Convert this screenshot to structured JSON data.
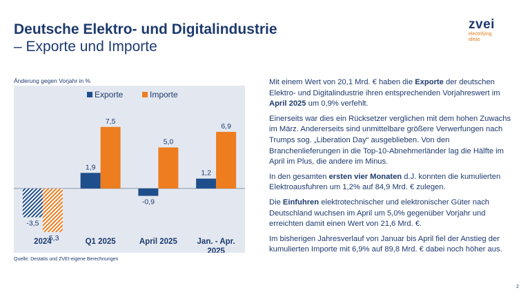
{
  "title_line1": "Deutsche Elektro- und Digitalindustrie",
  "title_line2": "– Exporte und Importe",
  "logo": {
    "mark": "zvei",
    "tagline1": "electrifying",
    "tagline2": "ideas"
  },
  "source": "Quelle: Destatis und ZVEI-eigene Berechnungen",
  "page_number": "2",
  "colors": {
    "exporte": "#1f4e8c",
    "importe": "#ed7d1f",
    "text": "#1d3a6e",
    "chart_bg": "#e3e8f0"
  },
  "chart_data": {
    "type": "bar",
    "ylabel": "Änderung gegen Vorjahr in %",
    "categories": [
      [
        "2024"
      ],
      [
        "Q1 2025"
      ],
      [
        "April 2025"
      ],
      [
        "Jan. - Apr.",
        "2025"
      ]
    ],
    "series": [
      {
        "name": "Exporte",
        "values": [
          -3.5,
          1.9,
          -0.9,
          1.2
        ],
        "labels": [
          "-3,5",
          "1,9",
          "-0,9",
          "1,2"
        ],
        "hatched": [
          true,
          false,
          false,
          false
        ]
      },
      {
        "name": "Importe",
        "values": [
          -5.3,
          7.5,
          5.0,
          6.9
        ],
        "labels": [
          "-5,3",
          "7,5",
          "5,0",
          "6,9"
        ],
        "hatched": [
          true,
          false,
          false,
          false
        ]
      }
    ],
    "ylim": [
      -7.5,
      9.5
    ],
    "grid": false,
    "legend": "top"
  },
  "paragraphs": [
    [
      {
        "t": "Mit einem Wert von 20,1 Mrd. € haben die "
      },
      {
        "t": "Exporte",
        "b": true
      },
      {
        "t": " der deutschen Elektro- und Digitalindustrie ihren entsprechenden Vorjahreswert im "
      },
      {
        "t": "April 2025",
        "b": true
      },
      {
        "t": " um 0,9% verfehlt."
      }
    ],
    [
      {
        "t": "Einerseits war dies ein Rücksetzer verglichen mit dem hohen Zuwachs im März. Andererseits sind unmittelbare größere Verwerfungen nach Trumps sog. „Liberation Day“ ausgeblieben. Von den Branchenlieferungen in die Top-10-Abnehmerländer lag die Hälfte im April im Plus, die andere im Minus."
      }
    ],
    [
      {
        "t": "In den gesamten "
      },
      {
        "t": "ersten vier Monaten",
        "b": true
      },
      {
        "t": " d.J. konnten die kumulierten Elektroausfuhren um 1,2% auf 84,9 Mrd. € zulegen."
      }
    ],
    [
      {
        "t": "Die "
      },
      {
        "t": "Einfuhren",
        "b": true
      },
      {
        "t": " elektrotechnischer und elektronischer Güter nach Deutschland wuchsen im April um 5,0% gegenüber Vorjahr und erreichten damit einen Wert von 21,6 Mrd. €."
      }
    ],
    [
      {
        "t": "Im bisherigen Jahresverlauf von Januar bis April fiel der Anstieg der kumulierten Importe mit 6,9% auf 89,8 Mrd. € dabei noch höher aus."
      }
    ]
  ]
}
